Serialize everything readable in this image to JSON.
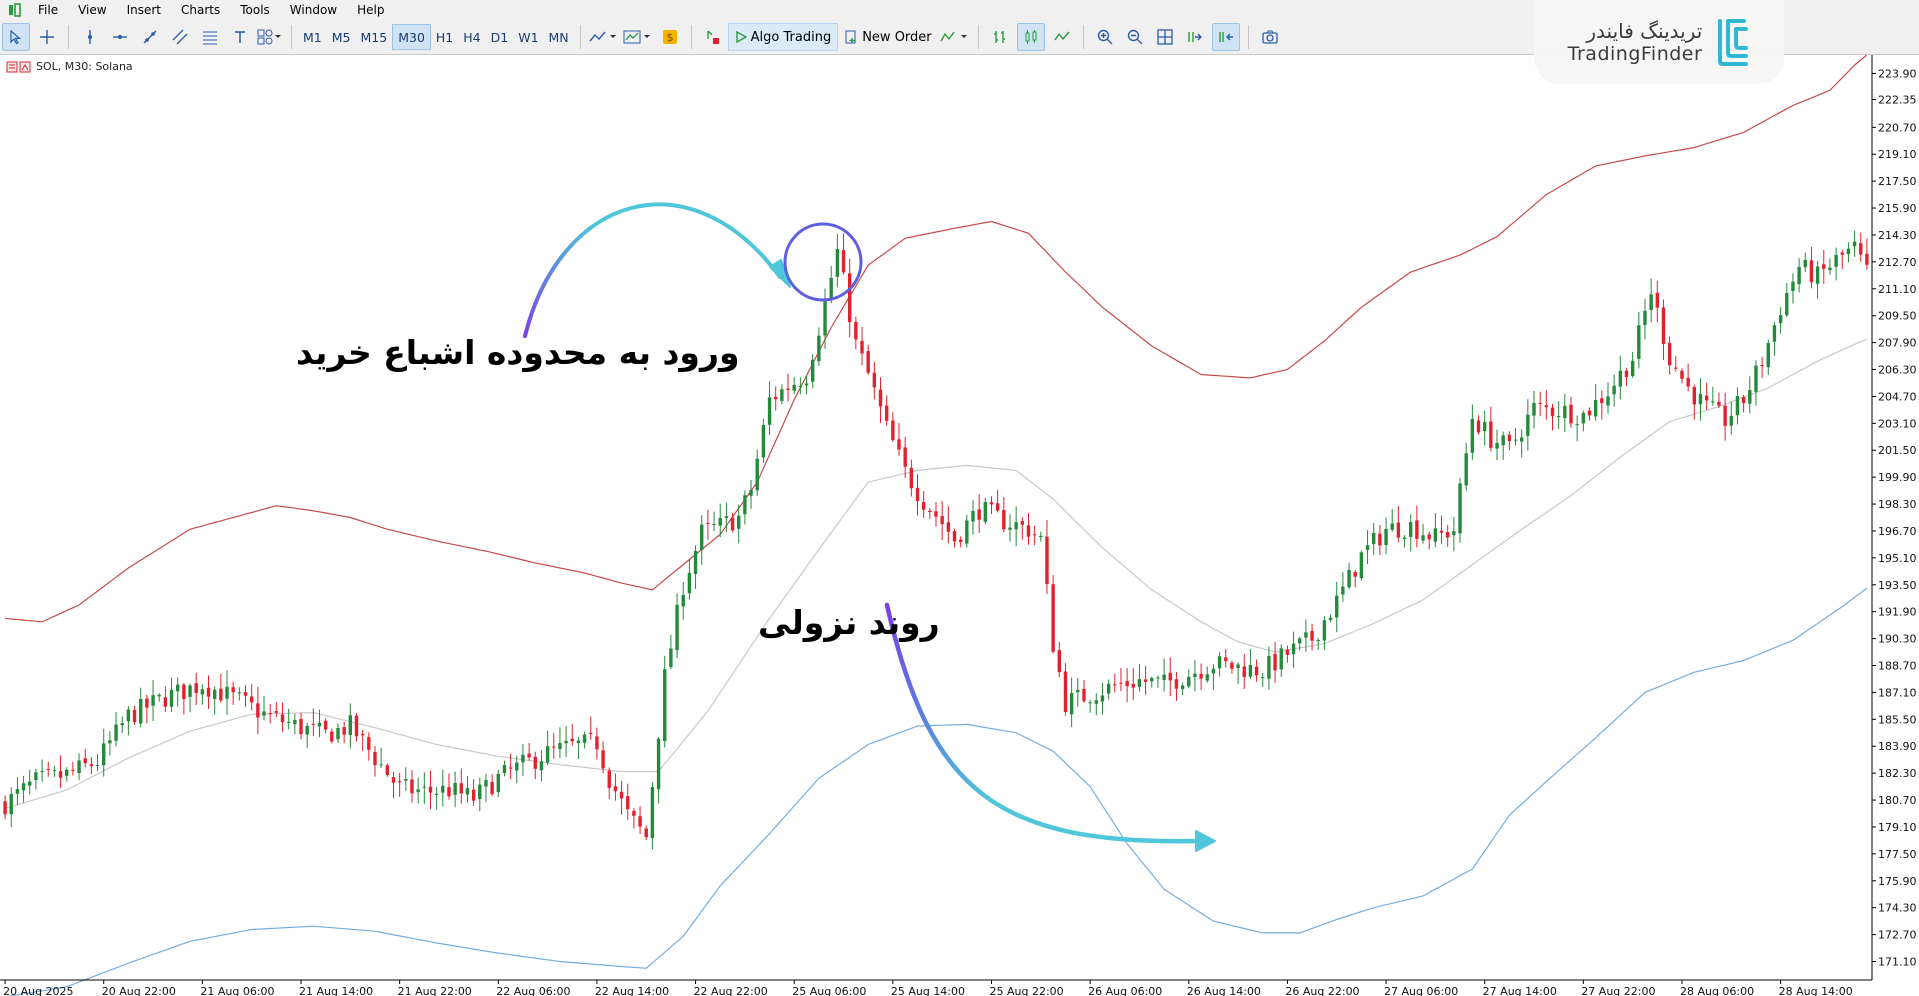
{
  "menu": {
    "items": [
      "File",
      "View",
      "Insert",
      "Charts",
      "Tools",
      "Window",
      "Help"
    ]
  },
  "toolbar": {
    "timeframes": [
      "M1",
      "M5",
      "M15",
      "M30",
      "H1",
      "H4",
      "D1",
      "W1",
      "MN"
    ],
    "active_timeframe": "M30",
    "algo_trading_label": "Algo Trading",
    "new_order_label": "New Order"
  },
  "chart_label": {
    "symbol_info": "SOL, M30:  Solana"
  },
  "logo": {
    "fa": "تریدینگ فایندر",
    "en": "TradingFinder"
  },
  "annotations": {
    "overbought_entry": "ورود به محدوده اشباع خرید",
    "downtrend": "روند نزولی"
  },
  "colors": {
    "bull": "#238a3c",
    "bear": "#e3202d",
    "upper_band": "#c64a4a",
    "middle_band": "#c8c8c8",
    "lower_band": "#74aedf",
    "arrow_start": "#7b3fe4",
    "arrow_end": "#4fc6d9",
    "circle": "#5b5fe0"
  },
  "chart_data": {
    "type": "candlestick",
    "ylim": [
      170.0,
      225.0
    ],
    "y_ticks": [
      "223.90",
      "222.35",
      "220.70",
      "219.10",
      "217.50",
      "215.90",
      "214.30",
      "212.70",
      "211.10",
      "209.50",
      "207.90",
      "206.30",
      "204.70",
      "203.10",
      "201.50",
      "199.90",
      "198.30",
      "196.70",
      "195.10",
      "193.50",
      "191.90",
      "190.30",
      "188.70",
      "187.10",
      "185.50",
      "183.90",
      "182.30",
      "180.70",
      "179.10",
      "177.50",
      "175.90",
      "174.30",
      "172.70",
      "171.10"
    ],
    "x_ticks": [
      "20 Aug 2025",
      "20 Aug 22:00",
      "21 Aug 06:00",
      "21 Aug 14:00",
      "21 Aug 22:00",
      "22 Aug 06:00",
      "22 Aug 14:00",
      "22 Aug 22:00",
      "25 Aug 06:00",
      "25 Aug 14:00",
      "25 Aug 22:00",
      "26 Aug 06:00",
      "26 Aug 14:00",
      "26 Aug 22:00",
      "27 Aug 06:00",
      "27 Aug 14:00",
      "27 Aug 22:00",
      "28 Aug 06:00",
      "28 Aug 14:00"
    ],
    "price_anchors": [
      [
        0,
        180.5
      ],
      [
        5,
        181.8
      ],
      [
        10,
        182.2
      ],
      [
        15,
        183.0
      ],
      [
        20,
        185.7
      ],
      [
        26,
        186.8
      ],
      [
        32,
        187.6
      ],
      [
        38,
        186.6
      ],
      [
        42,
        185.8
      ],
      [
        48,
        185.0
      ],
      [
        52,
        184.6
      ],
      [
        56,
        185.1
      ],
      [
        60,
        183.2
      ],
      [
        64,
        181.4
      ],
      [
        68,
        181.2
      ],
      [
        72,
        181.3
      ],
      [
        76,
        180.8
      ],
      [
        80,
        182.0
      ],
      [
        84,
        182.8
      ],
      [
        88,
        183.5
      ],
      [
        92,
        183.9
      ],
      [
        96,
        184.1
      ],
      [
        98,
        182.0
      ],
      [
        101,
        179.8
      ],
      [
        104,
        178.5
      ],
      [
        107,
        188.0
      ],
      [
        110,
        193.5
      ],
      [
        113,
        196.6
      ],
      [
        116,
        197.0
      ],
      [
        119,
        197.5
      ],
      [
        121,
        199.2
      ],
      [
        124,
        204.5
      ],
      [
        127,
        205.3
      ],
      [
        130,
        206.0
      ],
      [
        133,
        210.2
      ],
      [
        135,
        213.3
      ],
      [
        138,
        207.8
      ],
      [
        140,
        206.0
      ],
      [
        143,
        202.8
      ],
      [
        146,
        200.2
      ],
      [
        149,
        198.5
      ],
      [
        152,
        197.2
      ],
      [
        154,
        196.2
      ],
      [
        158,
        198.0
      ],
      [
        162,
        197.3
      ],
      [
        166,
        196.8
      ],
      [
        168,
        196.2
      ],
      [
        170,
        190.0
      ],
      [
        172,
        186.5
      ],
      [
        176,
        187.0
      ],
      [
        180,
        187.5
      ],
      [
        184,
        187.8
      ],
      [
        188,
        187.6
      ],
      [
        192,
        188.2
      ],
      [
        196,
        188.8
      ],
      [
        200,
        188.6
      ],
      [
        204,
        188.4
      ],
      [
        208,
        189.4
      ],
      [
        212,
        190.3
      ],
      [
        216,
        192.5
      ],
      [
        220,
        195.2
      ],
      [
        224,
        196.8
      ],
      [
        228,
        197.0
      ],
      [
        232,
        196.3
      ],
      [
        235,
        196.8
      ],
      [
        238,
        203.5
      ],
      [
        241,
        202.2
      ],
      [
        244,
        201.6
      ],
      [
        248,
        204.0
      ],
      [
        252,
        203.9
      ],
      [
        256,
        203.6
      ],
      [
        260,
        205.0
      ],
      [
        264,
        207.0
      ],
      [
        267,
        211.0
      ],
      [
        270,
        207.0
      ],
      [
        273,
        205.2
      ],
      [
        276,
        204.0
      ],
      [
        279,
        203.3
      ],
      [
        282,
        204.5
      ],
      [
        285,
        206.8
      ],
      [
        288,
        210.0
      ],
      [
        291,
        212.4
      ],
      [
        294,
        211.8
      ],
      [
        297,
        212.8
      ],
      [
        300,
        213.5
      ],
      [
        302,
        212.0
      ]
    ],
    "upper_band_anchors": [
      [
        0,
        191.5
      ],
      [
        6,
        191.3
      ],
      [
        12,
        192.3
      ],
      [
        20,
        194.5
      ],
      [
        30,
        196.8
      ],
      [
        38,
        197.6
      ],
      [
        44,
        198.2
      ],
      [
        50,
        197.9
      ],
      [
        56,
        197.5
      ],
      [
        62,
        196.8
      ],
      [
        70,
        196.1
      ],
      [
        78,
        195.5
      ],
      [
        86,
        194.8
      ],
      [
        94,
        194.2
      ],
      [
        100,
        193.6
      ],
      [
        105,
        193.2
      ],
      [
        110,
        194.7
      ],
      [
        116,
        196.5
      ],
      [
        122,
        199.6
      ],
      [
        128,
        204.5
      ],
      [
        134,
        208.8
      ],
      [
        140,
        212.5
      ],
      [
        146,
        214.1
      ],
      [
        154,
        214.7
      ],
      [
        160,
        215.1
      ],
      [
        166,
        214.4
      ],
      [
        172,
        212.1
      ],
      [
        178,
        210.0
      ],
      [
        186,
        207.7
      ],
      [
        194,
        206.0
      ],
      [
        202,
        205.8
      ],
      [
        208,
        206.3
      ],
      [
        214,
        208.0
      ],
      [
        220,
        210.0
      ],
      [
        228,
        212.1
      ],
      [
        236,
        213.1
      ],
      [
        242,
        214.2
      ],
      [
        250,
        216.7
      ],
      [
        258,
        218.4
      ],
      [
        266,
        219.0
      ],
      [
        274,
        219.5
      ],
      [
        282,
        220.4
      ],
      [
        290,
        222.0
      ],
      [
        296,
        222.9
      ],
      [
        300,
        224.4
      ],
      [
        302,
        225.0
      ]
    ],
    "middle_band_anchors": [
      [
        0,
        180.2
      ],
      [
        10,
        181.3
      ],
      [
        20,
        183.2
      ],
      [
        30,
        184.8
      ],
      [
        40,
        185.8
      ],
      [
        50,
        185.9
      ],
      [
        60,
        185.0
      ],
      [
        70,
        184.0
      ],
      [
        80,
        183.3
      ],
      [
        90,
        182.8
      ],
      [
        100,
        182.4
      ],
      [
        106,
        182.4
      ],
      [
        114,
        186.0
      ],
      [
        124,
        191.5
      ],
      [
        132,
        195.6
      ],
      [
        140,
        199.6
      ],
      [
        148,
        200.3
      ],
      [
        156,
        200.6
      ],
      [
        164,
        200.3
      ],
      [
        170,
        198.6
      ],
      [
        178,
        195.7
      ],
      [
        186,
        193.2
      ],
      [
        194,
        191.3
      ],
      [
        200,
        190.1
      ],
      [
        206,
        189.5
      ],
      [
        214,
        190.0
      ],
      [
        222,
        191.2
      ],
      [
        230,
        192.6
      ],
      [
        238,
        194.7
      ],
      [
        246,
        196.8
      ],
      [
        254,
        198.8
      ],
      [
        262,
        201.1
      ],
      [
        270,
        203.2
      ],
      [
        278,
        204.1
      ],
      [
        286,
        205.2
      ],
      [
        294,
        206.8
      ],
      [
        300,
        207.8
      ],
      [
        302,
        208.1
      ]
    ],
    "lower_band_anchors": [
      [
        0,
        169.0
      ],
      [
        10,
        169.6
      ],
      [
        20,
        171.0
      ],
      [
        30,
        172.3
      ],
      [
        40,
        173.0
      ],
      [
        50,
        173.2
      ],
      [
        60,
        172.9
      ],
      [
        70,
        172.2
      ],
      [
        80,
        171.6
      ],
      [
        90,
        171.1
      ],
      [
        100,
        170.8
      ],
      [
        104,
        170.7
      ],
      [
        110,
        172.6
      ],
      [
        116,
        175.6
      ],
      [
        124,
        178.7
      ],
      [
        132,
        182.0
      ],
      [
        140,
        184.0
      ],
      [
        148,
        185.1
      ],
      [
        156,
        185.2
      ],
      [
        164,
        184.7
      ],
      [
        170,
        183.6
      ],
      [
        176,
        181.5
      ],
      [
        182,
        178.1
      ],
      [
        188,
        175.4
      ],
      [
        196,
        173.5
      ],
      [
        204,
        172.8
      ],
      [
        210,
        172.8
      ],
      [
        216,
        173.6
      ],
      [
        222,
        174.3
      ],
      [
        230,
        175.0
      ],
      [
        238,
        176.6
      ],
      [
        244,
        179.8
      ],
      [
        250,
        181.8
      ],
      [
        258,
        184.4
      ],
      [
        266,
        187.1
      ],
      [
        274,
        188.3
      ],
      [
        282,
        189.0
      ],
      [
        290,
        190.2
      ],
      [
        298,
        192.2
      ],
      [
        302,
        193.3
      ]
    ]
  }
}
